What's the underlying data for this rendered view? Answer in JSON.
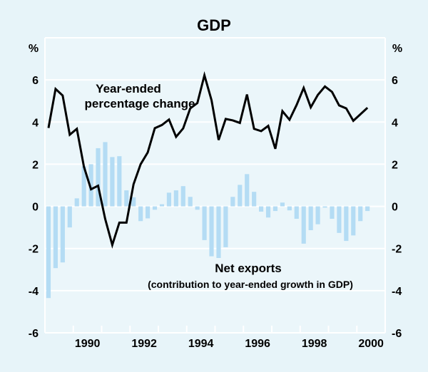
{
  "chart_data": {
    "type": "bar+line",
    "title": "GDP",
    "ylabel_left": "%",
    "ylabel_right": "%",
    "ylim": [
      -6,
      8
    ],
    "yticks": [
      -6,
      -4,
      -2,
      0,
      2,
      4,
      6
    ],
    "ytick_labels": [
      "-6",
      "-4",
      "-2",
      "0",
      "2",
      "4",
      "6"
    ],
    "xlim_years": [
      1989,
      2001
    ],
    "xtick_labels": [
      "1990",
      "1992",
      "1994",
      "1996",
      "1998",
      "2000"
    ],
    "xtick_label_years": [
      1990,
      1992,
      1994,
      1996,
      1998,
      2000
    ],
    "grid": true,
    "frequency": "quarterly",
    "start_period": "1989 Q1",
    "end_period": "2000 Q2",
    "series": [
      {
        "name": "Year-ended percentage change",
        "kind": "line",
        "color": "#000000",
        "label_lines": [
          "Year-ended",
          "percentage change"
        ],
        "values": [
          3.72,
          5.57,
          5.26,
          3.4,
          3.68,
          1.88,
          0.81,
          0.98,
          -0.6,
          -1.83,
          -0.77,
          -0.77,
          1.05,
          2.0,
          2.56,
          3.71,
          3.86,
          4.12,
          3.3,
          3.7,
          4.65,
          4.9,
          6.22,
          5.04,
          3.15,
          4.15,
          4.08,
          3.96,
          5.31,
          3.68,
          3.57,
          3.82,
          2.73,
          4.52,
          4.11,
          4.81,
          5.62,
          4.7,
          5.29,
          5.69,
          5.43,
          4.79,
          4.65,
          4.06,
          4.37,
          4.68
        ]
      },
      {
        "name": "Net exports (contribution to year-ended growth in GDP)",
        "kind": "bar",
        "color": "#b4dcf4",
        "label_lines": [
          "Net exports",
          "(contribution to year-ended growth in GDP)"
        ],
        "values": [
          -4.35,
          -2.93,
          -2.66,
          -1.0,
          0.38,
          1.9,
          2.0,
          2.76,
          3.05,
          2.34,
          2.38,
          0.76,
          0.43,
          -0.7,
          -0.57,
          -0.16,
          0.1,
          0.65,
          0.76,
          0.96,
          0.45,
          -0.16,
          -1.6,
          -2.37,
          -2.45,
          -1.94,
          0.45,
          1.02,
          1.53,
          0.69,
          -0.25,
          -0.53,
          -0.22,
          0.18,
          -0.19,
          -0.59,
          -1.77,
          -1.13,
          -0.85,
          -0.06,
          -0.59,
          -1.26,
          -1.64,
          -1.38,
          -0.7,
          -0.22
        ]
      }
    ],
    "colors": {
      "background": "#e7f4f9",
      "plot_background": "#ebf6fa",
      "gridline": "#ffffff"
    }
  }
}
